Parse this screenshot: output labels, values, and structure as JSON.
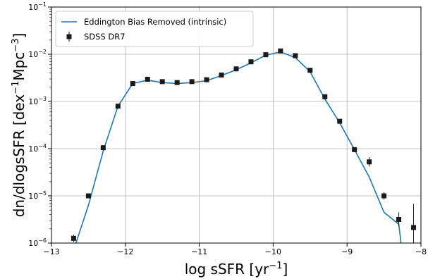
{
  "chart_data": {
    "type": "line",
    "xlabel": "log sSFR [yr",
    "xlabel_sup": "−1",
    "xlabel_end": "]",
    "ylabel": "dn/dlogsSFR [dex",
    "ylabel_sup1": "−1",
    "ylabel_mid": "Mpc",
    "ylabel_sup2": "−3",
    "ylabel_end": "]",
    "xlim": [
      -13,
      -8
    ],
    "ylim_log10": [
      -6,
      -1
    ],
    "yscale": "log",
    "grid": true,
    "legend_position": "top-left",
    "x_ticks": [
      -13,
      -12,
      -11,
      -10,
      -9,
      -8
    ],
    "x_tick_labels": [
      "−13",
      "−12",
      "−11",
      "−10",
      "−9",
      "−8"
    ],
    "y_ticks_log10": [
      -6,
      -5,
      -4,
      -3,
      -2,
      -1
    ],
    "y_tick_labels": [
      {
        "base": "10",
        "exp": "−6"
      },
      {
        "base": "10",
        "exp": "−5"
      },
      {
        "base": "10",
        "exp": "−4"
      },
      {
        "base": "10",
        "exp": "−3"
      },
      {
        "base": "10",
        "exp": "−2"
      },
      {
        "base": "10",
        "exp": "−1"
      }
    ],
    "series": [
      {
        "name": "Eddington Bias Removed (intrinsic)",
        "kind": "line",
        "color": "#1f77b4",
        "x": [
          -12.7,
          -12.5,
          -12.3,
          -12.1,
          -11.9,
          -11.7,
          -11.5,
          -11.3,
          -11.1,
          -10.9,
          -10.7,
          -10.5,
          -10.3,
          -10.1,
          -9.9,
          -9.7,
          -9.5,
          -9.3,
          -9.1,
          -8.9,
          -8.7,
          -8.5,
          -8.3,
          -8.27
        ],
        "y_log10": [
          -6.15,
          -5.2,
          -4.05,
          -3.1,
          -2.62,
          -2.55,
          -2.6,
          -2.62,
          -2.6,
          -2.56,
          -2.45,
          -2.33,
          -2.18,
          -2.02,
          -1.95,
          -2.07,
          -2.37,
          -2.95,
          -3.45,
          -4.02,
          -4.6,
          -5.35,
          -5.6,
          -6.0
        ]
      },
      {
        "name": "SDSS DR7",
        "kind": "errorbar",
        "color": "#1a1a1a",
        "x": [
          -12.7,
          -12.5,
          -12.3,
          -12.1,
          -11.9,
          -11.7,
          -11.5,
          -11.3,
          -11.1,
          -10.9,
          -10.7,
          -10.5,
          -10.3,
          -10.1,
          -9.9,
          -9.7,
          -9.5,
          -9.3,
          -9.1,
          -8.9,
          -8.7,
          -8.5,
          -8.3,
          -8.1
        ],
        "y_log10": [
          -5.9,
          -5.0,
          -3.98,
          -3.1,
          -2.62,
          -2.53,
          -2.58,
          -2.6,
          -2.58,
          -2.54,
          -2.44,
          -2.31,
          -2.16,
          -2.01,
          -1.93,
          -2.03,
          -2.34,
          -2.9,
          -3.42,
          -4.02,
          -4.28,
          -5.0,
          -5.5,
          -5.67
        ],
        "yerr_log10": [
          0.08,
          0.03,
          0.02,
          0.015,
          0.01,
          0.01,
          0.01,
          0.01,
          0.01,
          0.01,
          0.01,
          0.01,
          0.01,
          0.01,
          0.01,
          0.01,
          0.01,
          0.02,
          0.03,
          0.05,
          0.1,
          0.08,
          0.15,
          0.5
        ]
      }
    ]
  }
}
